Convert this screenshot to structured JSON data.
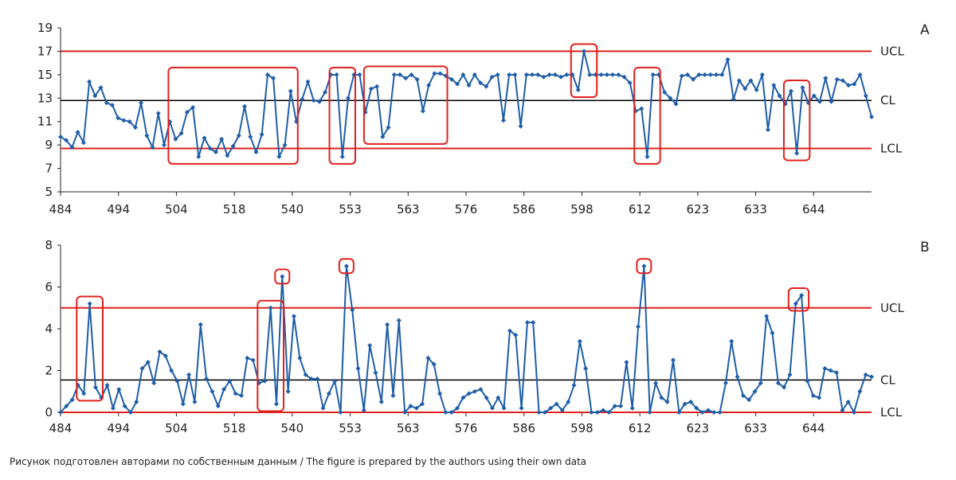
{
  "caption": "Рисунок подготовлен авторами по собственным данным / The figure is prepared by the authors using their own data",
  "colors": {
    "series": "#1f5ea8",
    "control_limits": "#e0201b",
    "center_line": "#000000",
    "highlight_box": "#e0201b"
  },
  "chart_data": [
    {
      "panel": "A",
      "type": "line",
      "tick_labels": [
        "484",
        "494",
        "504",
        "518",
        "540",
        "553",
        "563",
        "576",
        "586",
        "598",
        "612",
        "623",
        "633",
        "644"
      ],
      "y_ticks": [
        "5",
        "7",
        "9",
        "11",
        "13",
        "15",
        "17",
        "19"
      ],
      "ylim": [
        5,
        19
      ],
      "limit_lines": [
        {
          "label": "UCL",
          "value": 17
        },
        {
          "label": "CL",
          "value": 12.8
        },
        {
          "label": "LCL",
          "value": 8.7
        }
      ],
      "values": [
        9.7,
        9.4,
        8.8,
        10.1,
        9.2,
        14.4,
        13.2,
        13.9,
        12.6,
        12.4,
        11.3,
        11.1,
        11.0,
        10.5,
        12.6,
        9.8,
        8.8,
        11.7,
        9.0,
        11.0,
        9.5,
        10.0,
        11.8,
        12.2,
        8.0,
        9.6,
        8.7,
        8.4,
        9.5,
        8.1,
        8.9,
        9.8,
        12.3,
        9.7,
        8.4,
        9.9,
        15.0,
        14.7,
        8.0,
        9.0,
        13.6,
        11.0,
        12.9,
        14.4,
        12.8,
        12.7,
        13.5,
        15.0,
        15.0,
        8.0,
        13.0,
        15.0,
        15.0,
        11.8,
        13.8,
        14.0,
        9.7,
        10.5,
        15.0,
        15.0,
        14.7,
        15.0,
        14.6,
        11.9,
        14.1,
        15.1,
        15.1,
        14.9,
        14.6,
        14.2,
        15.0,
        14.1,
        15.0,
        14.3,
        14.0,
        14.8,
        15.0,
        11.1,
        15.0,
        15.0,
        10.6,
        15.0,
        15.0,
        15.0,
        14.8,
        15.0,
        15.0,
        14.8,
        15.0,
        15.0,
        13.7,
        17.0,
        15.0,
        15.0,
        15.0,
        15.0,
        15.0,
        15.0,
        14.8,
        14.3,
        11.9,
        12.1,
        8.0,
        15.0,
        15.0,
        13.5,
        13.0,
        12.5,
        14.9,
        15.0,
        14.6,
        15.0,
        15.0,
        15.0,
        15.0,
        15.0,
        16.3,
        12.9,
        14.5,
        13.8,
        14.5,
        13.7,
        15.0,
        10.3,
        14.1,
        13.2,
        12.5,
        13.6,
        8.3,
        13.9,
        12.6,
        13.2,
        12.7,
        14.7,
        12.7,
        14.6,
        14.5,
        14.1,
        14.2,
        15.0,
        13.2,
        11.4
      ],
      "highlights": [
        {
          "from": 20,
          "to": 40
        },
        {
          "from": 48,
          "to": 50
        },
        {
          "from": 54,
          "to": 66
        },
        {
          "from": 90,
          "to": 92
        },
        {
          "from": 101,
          "to": 103
        },
        {
          "from": 127,
          "to": 129
        }
      ]
    },
    {
      "panel": "B",
      "type": "line",
      "tick_labels": [
        "484",
        "494",
        "504",
        "518",
        "540",
        "553",
        "563",
        "576",
        "586",
        "598",
        "612",
        "623",
        "633",
        "644"
      ],
      "y_ticks": [
        "0",
        "2",
        "4",
        "6",
        "8"
      ],
      "ylim": [
        0,
        8
      ],
      "limit_lines": [
        {
          "label": "UCL",
          "value": 5.0
        },
        {
          "label": "CL",
          "value": 1.55
        },
        {
          "label": "LCL",
          "value": 0.0
        }
      ],
      "values": [
        0.0,
        0.3,
        0.6,
        1.3,
        0.9,
        5.2,
        1.2,
        0.7,
        1.3,
        0.2,
        1.1,
        0.3,
        0.0,
        0.5,
        2.1,
        2.4,
        1.4,
        2.9,
        2.7,
        2.0,
        1.5,
        0.4,
        1.8,
        0.5,
        4.2,
        1.6,
        1.0,
        0.3,
        1.1,
        1.5,
        0.9,
        0.8,
        2.6,
        2.5,
        1.4,
        1.5,
        5.0,
        0.4,
        6.5,
        1.0,
        4.6,
        2.6,
        1.8,
        1.6,
        1.6,
        0.2,
        0.9,
        1.5,
        0.0,
        7.0,
        4.9,
        2.1,
        0.1,
        3.2,
        1.9,
        0.5,
        4.2,
        0.8,
        4.4,
        0.0,
        0.3,
        0.2,
        0.4,
        2.6,
        2.3,
        0.9,
        0.0,
        0.0,
        0.2,
        0.7,
        0.9,
        1.0,
        1.1,
        0.7,
        0.2,
        0.7,
        0.2,
        3.9,
        3.7,
        0.2,
        4.3,
        4.3,
        0.0,
        0.0,
        0.2,
        0.4,
        0.1,
        0.5,
        1.3,
        3.4,
        2.1,
        0.0,
        0.0,
        0.1,
        0.0,
        0.3,
        0.3,
        2.4,
        0.2,
        4.1,
        7.0,
        0.0,
        1.4,
        0.7,
        0.5,
        2.5,
        0.0,
        0.4,
        0.5,
        0.2,
        0.0,
        0.1,
        0.0,
        0.0,
        1.4,
        3.4,
        1.7,
        0.8,
        0.6,
        1.0,
        1.4,
        4.6,
        3.8,
        1.4,
        1.2,
        1.8,
        5.2,
        5.6,
        1.5,
        0.8,
        0.7,
        2.1,
        2.0,
        1.9,
        0.1,
        0.5,
        0.0,
        1.0,
        1.8,
        1.7
      ],
      "highlights": [
        {
          "from": 4,
          "to": 6
        },
        {
          "from": 35,
          "to": 37
        },
        {
          "from": 38,
          "to": 38
        },
        {
          "from": 49,
          "to": 49
        },
        {
          "from": 100,
          "to": 100
        },
        {
          "from": 126,
          "to": 127
        }
      ]
    }
  ]
}
